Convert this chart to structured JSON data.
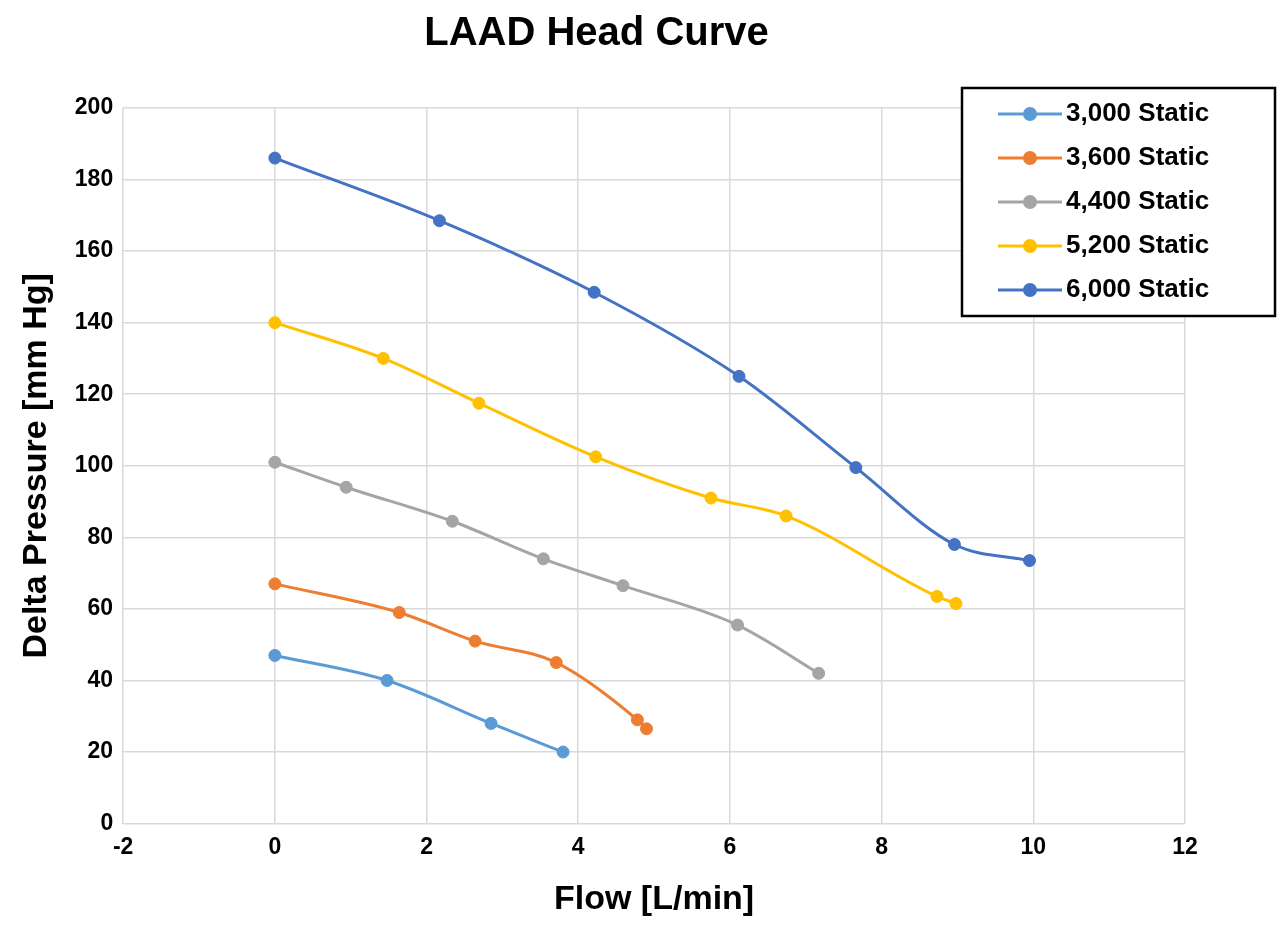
{
  "chart_data": {
    "type": "line",
    "title": "LAAD Head Curve",
    "xlabel": "Flow [L/min]",
    "ylabel": "Delta Pressure [mm Hg]",
    "xlim": [
      -2,
      12
    ],
    "xticks": [
      -2,
      0,
      2,
      4,
      6,
      8,
      10,
      12
    ],
    "ylim": [
      0,
      200
    ],
    "yticks": [
      0,
      20,
      40,
      60,
      80,
      100,
      120,
      140,
      160,
      180,
      200
    ],
    "grid": true,
    "legend": "top right",
    "marker": "circle",
    "line_style": "solid",
    "series": [
      {
        "name": "3,000 Static",
        "color": "#5b9bd5",
        "x": [
          0,
          1.48,
          2.85,
          3.8
        ],
        "values": [
          47,
          40,
          28,
          20
        ]
      },
      {
        "name": "3,600 Static",
        "color": "#ed7d31",
        "x": [
          0,
          1.64,
          2.64,
          3.71,
          4.78,
          4.9
        ],
        "values": [
          67,
          59,
          51,
          45,
          29,
          26.5
        ]
      },
      {
        "name": "4,400 Static",
        "color": "#a5a5a5",
        "x": [
          0,
          0.94,
          2.34,
          3.54,
          4.59,
          6.1,
          7.17
        ],
        "values": [
          101,
          94,
          84.5,
          74,
          66.5,
          55.5,
          42
        ]
      },
      {
        "name": "5,200 Static",
        "color": "#ffc000",
        "x": [
          0,
          1.43,
          2.69,
          4.23,
          5.75,
          6.74,
          8.73,
          8.98
        ],
        "values": [
          140,
          130,
          117.5,
          102.5,
          91,
          86,
          63.5,
          61.5
        ]
      },
      {
        "name": "6,000 Static",
        "color": "#4472c4",
        "x": [
          0,
          2.17,
          4.21,
          6.12,
          7.66,
          8.96,
          9.95
        ],
        "values": [
          186,
          168.5,
          148.5,
          125,
          99.5,
          78,
          73.5
        ]
      }
    ]
  }
}
